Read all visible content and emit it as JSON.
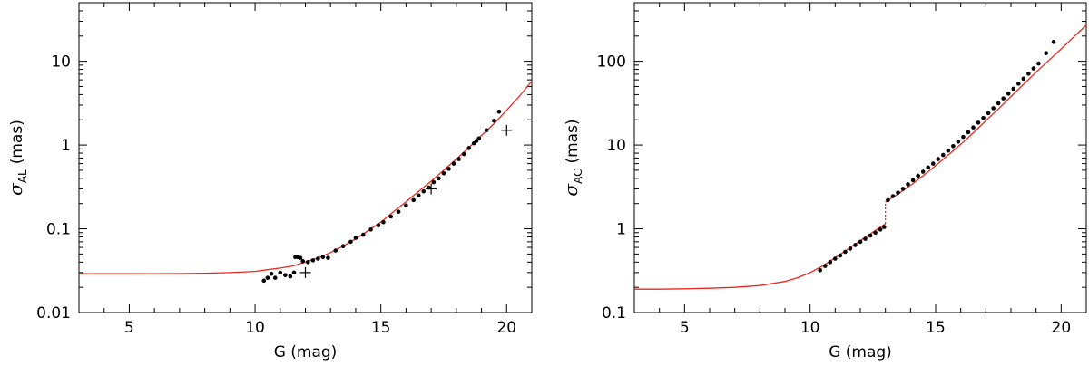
{
  "chart_data": [
    {
      "type": "scatter",
      "xlabel": "G (mag)",
      "ylabel_symbol": "σ",
      "ylabel_sub": "AL",
      "ylabel_unit": "(mas)",
      "xlim": [
        3,
        21
      ],
      "ylim": [
        0.01,
        50
      ],
      "yscale": "log",
      "xticks": [
        5,
        10,
        15,
        20
      ],
      "yticks": [
        0.01,
        0.1,
        1,
        10
      ],
      "ytick_labels": [
        "0.01",
        "0.1",
        "1",
        "10"
      ],
      "grid": false,
      "curve_color": "#e8281e",
      "curve": {
        "x": [
          3,
          4,
          5,
          6,
          7,
          8,
          9,
          10,
          10.5,
          11,
          11.5,
          12,
          12.5,
          13,
          13.5,
          14,
          14.5,
          15,
          15.5,
          16,
          16.5,
          17,
          17.5,
          18,
          18.5,
          19,
          19.5,
          20,
          20.5,
          21
        ],
        "y": [
          0.029,
          0.029,
          0.029,
          0.0291,
          0.0292,
          0.0295,
          0.03,
          0.031,
          0.0325,
          0.034,
          0.036,
          0.04,
          0.045,
          0.052,
          0.062,
          0.076,
          0.095,
          0.12,
          0.16,
          0.21,
          0.28,
          0.37,
          0.5,
          0.68,
          0.93,
          1.3,
          1.8,
          2.6,
          3.8,
          5.8
        ]
      },
      "points": {
        "x": [
          10.35,
          10.5,
          10.65,
          10.8,
          11.0,
          11.2,
          11.4,
          11.55,
          11.6,
          11.7,
          11.8,
          11.9,
          12.1,
          12.3,
          12.5,
          12.7,
          12.9,
          13.2,
          13.5,
          13.8,
          14.0,
          14.3,
          14.6,
          14.9,
          15.1,
          15.4,
          15.7,
          16.0,
          16.3,
          16.5,
          16.7,
          16.9,
          17.1,
          17.3,
          17.5,
          17.7,
          17.9,
          18.1,
          18.3,
          18.5,
          18.7,
          18.8,
          18.9,
          19.2,
          19.5,
          19.7
        ],
        "y": [
          0.024,
          0.026,
          0.029,
          0.026,
          0.03,
          0.028,
          0.027,
          0.03,
          0.046,
          0.046,
          0.045,
          0.041,
          0.04,
          0.042,
          0.044,
          0.046,
          0.045,
          0.055,
          0.062,
          0.07,
          0.078,
          0.085,
          0.098,
          0.11,
          0.12,
          0.14,
          0.16,
          0.19,
          0.22,
          0.25,
          0.28,
          0.31,
          0.36,
          0.4,
          0.46,
          0.52,
          0.6,
          0.68,
          0.78,
          0.92,
          1.05,
          1.12,
          1.2,
          1.5,
          1.95,
          2.5
        ]
      },
      "plus_markers": {
        "x": [
          12.0,
          17.0,
          20.0
        ],
        "y": [
          0.03,
          0.3,
          1.5
        ]
      }
    },
    {
      "type": "scatter",
      "xlabel": "G (mag)",
      "ylabel_symbol": "σ",
      "ylabel_sub": "AC",
      "ylabel_unit": "(mas)",
      "xlim": [
        3,
        21
      ],
      "ylim": [
        0.1,
        500
      ],
      "yscale": "log",
      "xticks": [
        5,
        10,
        15,
        20
      ],
      "yticks": [
        0.1,
        1,
        10,
        100
      ],
      "ytick_labels": [
        "0.1",
        "1",
        "10",
        "100"
      ],
      "grid": false,
      "curve_color": "#e8281e",
      "curve": {
        "segments": [
          {
            "x": [
              3,
              4,
              5,
              6,
              7,
              8,
              9,
              9.5,
              10,
              10.5,
              11,
              11.5,
              12,
              12.5,
              13
            ],
            "y": [
              0.19,
              0.19,
              0.192,
              0.195,
              0.2,
              0.21,
              0.235,
              0.26,
              0.3,
              0.36,
              0.45,
              0.57,
              0.72,
              0.91,
              1.15
            ]
          },
          {
            "x": [
              13,
              13.5,
              14,
              14.5,
              15,
              15.5,
              16,
              16.5,
              17,
              17.5,
              18,
              18.5,
              19,
              19.5,
              20,
              20.5,
              21
            ],
            "y": [
              2.1,
              2.6,
              3.3,
              4.3,
              5.7,
              7.6,
              10.2,
              14,
              19.5,
              27,
              38,
              53,
              74,
              102,
              140,
              195,
              270
            ]
          }
        ],
        "jump": {
          "x": 13,
          "y": [
            1.15,
            2.1
          ]
        }
      },
      "points": {
        "x": [
          10.4,
          10.6,
          10.8,
          11.0,
          11.2,
          11.4,
          11.6,
          11.8,
          12.0,
          12.2,
          12.4,
          12.6,
          12.8,
          12.95,
          13.1,
          13.3,
          13.5,
          13.7,
          13.9,
          14.1,
          14.3,
          14.5,
          14.7,
          14.9,
          15.1,
          15.3,
          15.5,
          15.7,
          15.9,
          16.1,
          16.3,
          16.5,
          16.7,
          16.9,
          17.1,
          17.3,
          17.5,
          17.7,
          17.9,
          18.1,
          18.3,
          18.5,
          18.7,
          18.9,
          19.1,
          19.4,
          19.7
        ],
        "y": [
          0.32,
          0.36,
          0.4,
          0.44,
          0.48,
          0.53,
          0.58,
          0.64,
          0.7,
          0.76,
          0.83,
          0.9,
          0.98,
          1.05,
          2.2,
          2.45,
          2.7,
          3.0,
          3.4,
          3.8,
          4.3,
          4.8,
          5.4,
          6.0,
          6.8,
          7.6,
          8.6,
          9.7,
          11,
          12.5,
          14.2,
          16.2,
          18.5,
          21,
          24,
          27.5,
          31.5,
          36,
          41,
          47,
          54,
          62,
          71,
          82,
          94,
          125,
          170
        ]
      }
    }
  ]
}
